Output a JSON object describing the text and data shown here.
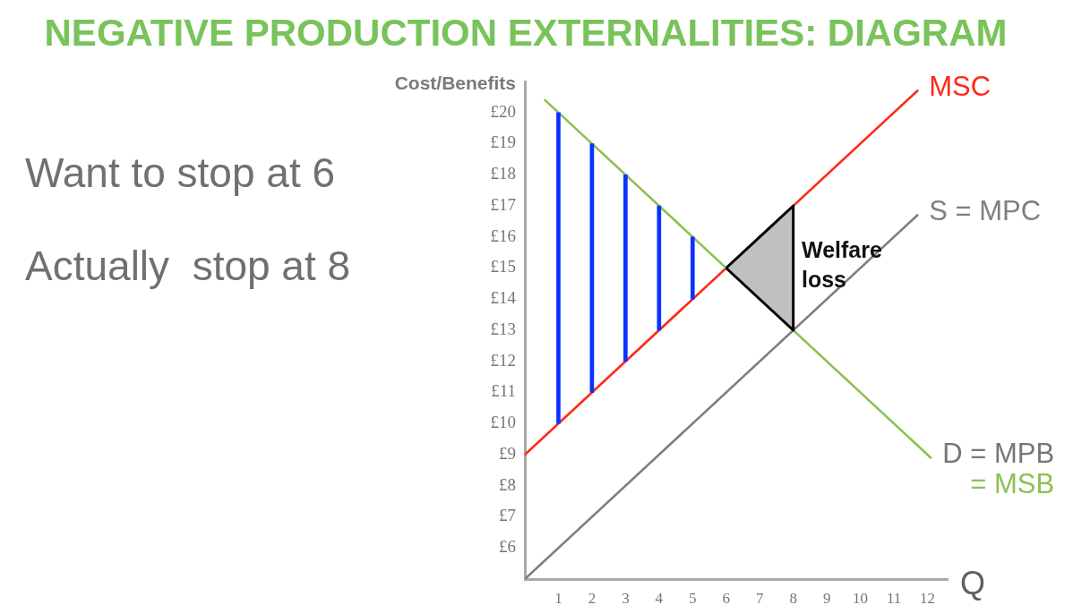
{
  "chart_data": {
    "type": "line",
    "title": "NEGATIVE PRODUCTION EXTERNALITIES: DIAGRAM",
    "xlabel": "Q",
    "ylabel": "Cost/Benefits",
    "annotations": [
      "Want to stop at 6",
      "Actually  stop at 8",
      "Welfare\nloss"
    ],
    "xlim": [
      0,
      12.6
    ],
    "ylim": [
      5,
      21
    ],
    "xticks": [
      1,
      2,
      3,
      4,
      5,
      6,
      7,
      8,
      9,
      10,
      11,
      12
    ],
    "yticks": [
      {
        "value": 6,
        "label": "£6"
      },
      {
        "value": 7,
        "label": "£7"
      },
      {
        "value": 8,
        "label": "£8"
      },
      {
        "value": 9,
        "label": "£9"
      },
      {
        "value": 10,
        "label": "£10"
      },
      {
        "value": 11,
        "label": "£11"
      },
      {
        "value": 12,
        "label": "£12"
      },
      {
        "value": 13,
        "label": "£13"
      },
      {
        "value": 14,
        "label": "£14"
      },
      {
        "value": 15,
        "label": "£15"
      },
      {
        "value": 16,
        "label": "£16"
      },
      {
        "value": 17,
        "label": "£17"
      },
      {
        "value": 18,
        "label": "£18"
      },
      {
        "value": 19,
        "label": "£19"
      },
      {
        "value": 20,
        "label": "£20"
      }
    ],
    "grid": false,
    "legend": false,
    "marker": "none",
    "line_style": "solid",
    "series": [
      {
        "name": "MSC",
        "color": "#ff2a16",
        "x": [
          0,
          11.7
        ],
        "values": [
          9,
          20.7
        ]
      },
      {
        "name": "S = MPC",
        "color": "#7f7f7f",
        "x": [
          0,
          11.7
        ],
        "values": [
          5,
          16.7
        ]
      },
      {
        "name": "D = MPB\n= MSB",
        "color": "#8cc152",
        "x": [
          0.6,
          12.1
        ],
        "values": [
          20.4,
          8.9
        ]
      },
      {
        "type": "bar",
        "color": "#0a32ff",
        "x": [
          1,
          2,
          3,
          4,
          5
        ],
        "base": [
          10,
          11,
          12,
          13,
          14
        ],
        "values": [
          10,
          8,
          6,
          4,
          2
        ]
      },
      {
        "type": "area",
        "color": "#c0c0c0",
        "x": [
          6,
          8,
          8,
          6
        ],
        "values": [
          15,
          17,
          13,
          15
        ]
      }
    ]
  }
}
